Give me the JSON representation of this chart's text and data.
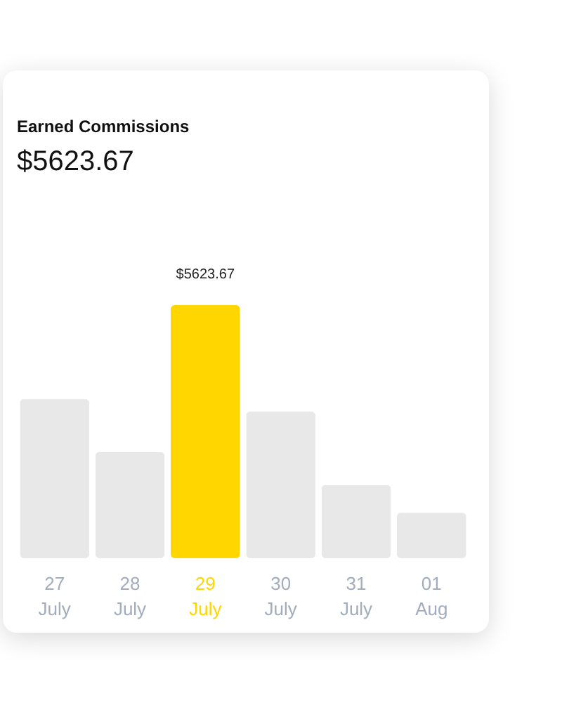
{
  "chart_data": {
    "type": "bar",
    "title": "Earned Commissions",
    "subtitle": "$5623.67",
    "categories": [
      "27 July",
      "28 July",
      "29 July",
      "30 July",
      "31 July",
      "01 Aug"
    ],
    "values": [
      3540,
      2360,
      5623.67,
      3260,
      1630,
      1010
    ],
    "colors": [
      "#e8e8e8",
      "#e8e8e8",
      "#ffd600",
      "#e8e8e8",
      "#e8e8e8",
      "#e8e8e8"
    ],
    "value_labels": [
      null,
      null,
      "$5623.67",
      null,
      null,
      null
    ]
  }
}
